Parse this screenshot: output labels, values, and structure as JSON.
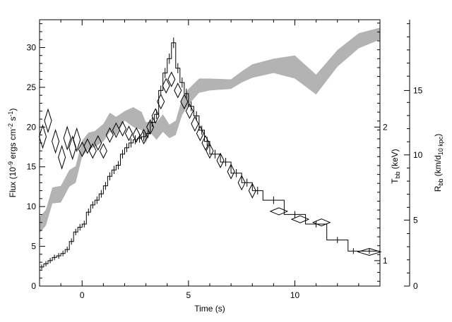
{
  "chart_data": {
    "type": "line",
    "title": "",
    "xlabel": "Time (s)",
    "ylabel_left": "Flux (10^-9 ergs cm^-2 s^-1)",
    "ylabel_right_inner": "T_bb (keV)",
    "ylabel_right_outer": "R_bb (km/d_10 kpc)",
    "xlim": [
      -2,
      14
    ],
    "ylim": [
      0,
      33.5
    ],
    "x_ticks": [
      0,
      5,
      10
    ],
    "x_tick_labels": [
      "0",
      "5",
      "10"
    ],
    "y_ticks": [
      0,
      5,
      10,
      15,
      20,
      25,
      30
    ],
    "y_tick_labels": [
      "0",
      "5",
      "10",
      "15",
      "20",
      "25",
      "30"
    ],
    "t_axis_ticks_flux": [
      3.2,
      20.0
    ],
    "t_axis_tick_labels": [
      "1",
      "2"
    ],
    "r_axis_ticks_flux": [
      0,
      8.3,
      16.5,
      24.6
    ],
    "r_axis_tick_labels": [
      "0",
      "5",
      "10",
      "15"
    ],
    "colors": {
      "band": "#b3b3b3",
      "line": "#000000"
    },
    "grid": false,
    "series": [
      {
        "kind": "step",
        "x": [
          -2.0,
          -1.8,
          -1.6,
          -1.4,
          -1.2,
          -1.0,
          -0.8,
          -0.6,
          -0.4,
          -0.2,
          0.0,
          0.2,
          0.4,
          0.6,
          0.8,
          1.0,
          1.2,
          1.4,
          1.6,
          1.8,
          2.0,
          2.2,
          2.4,
          2.6,
          2.8,
          3.0,
          3.2,
          3.4,
          3.6,
          3.8,
          4.0,
          4.2,
          4.4,
          4.6,
          4.8,
          5.0,
          5.25,
          5.5,
          5.75,
          6.0,
          6.5,
          7.0,
          7.5,
          8.0,
          8.5,
          9.5,
          10.5,
          11.5,
          12.5,
          13.0,
          14.0
        ],
        "values": [
          2.4,
          2.8,
          3.2,
          3.6,
          3.8,
          4.1,
          4.6,
          5.6,
          6.8,
          7.4,
          7.8,
          9.3,
          10.2,
          10.8,
          11.6,
          12.6,
          13.8,
          14.6,
          15.2,
          16.6,
          17.4,
          18.0,
          18.4,
          18.6,
          18.8,
          19.2,
          20.6,
          21.6,
          24.6,
          26.8,
          28.6,
          30.6,
          27.4,
          25.6,
          24.2,
          22.6,
          21.4,
          19.6,
          18.2,
          16.6,
          15.6,
          14.2,
          13.0,
          12.0,
          10.8,
          9.0,
          7.8,
          5.8,
          4.4,
          4.4,
          4.4
        ]
      },
      {
        "kind": "diamonds",
        "x": [
          -1.85,
          -1.6,
          -1.25,
          -0.95,
          -0.7,
          -0.45,
          -0.25,
          0.0,
          0.25,
          0.5,
          0.75,
          1.0,
          1.3,
          1.6,
          1.9,
          2.2,
          2.55,
          2.9,
          3.2,
          3.45,
          3.7,
          3.95,
          4.2,
          4.5,
          4.8,
          5.05,
          5.3,
          5.55,
          5.8,
          6.0,
          6.5,
          7.0,
          7.5,
          8.0,
          9.25,
          10.25,
          11.25,
          13.5
        ],
        "values": [
          18.8,
          20.8,
          18.2,
          16.2,
          18.6,
          17.4,
          18.4,
          17.2,
          17.6,
          17.0,
          18.0,
          17.0,
          19.0,
          19.6,
          19.8,
          19.2,
          19.0,
          18.8,
          20.0,
          21.4,
          23.2,
          25.2,
          26.0,
          24.6,
          23.2,
          22.0,
          20.4,
          19.2,
          18.0,
          17.0,
          15.8,
          14.4,
          13.0,
          12.0,
          9.4,
          8.4,
          8.0,
          4.3
        ]
      },
      {
        "kind": "band",
        "x": [
          -2.0,
          -1.7,
          -1.4,
          -1.0,
          -0.6,
          -0.3,
          0.0,
          0.3,
          0.6,
          1.0,
          1.3,
          1.6,
          2.0,
          2.4,
          2.8,
          3.0,
          3.2,
          3.5,
          3.8,
          4.1,
          4.4,
          4.7,
          5.0,
          5.5,
          6.0,
          7.0,
          7.5,
          8.0,
          9.0,
          10.0,
          11.0,
          12.0,
          13.0,
          14.0
        ],
        "low": [
          6.7,
          7.6,
          10.4,
          10.5,
          12.5,
          13.0,
          16.3,
          17.2,
          17.5,
          18.2,
          19.4,
          19.0,
          20.8,
          20.0,
          19.6,
          18.0,
          19.3,
          18.4,
          19.4,
          18.6,
          19.0,
          21.5,
          22.8,
          24.3,
          24.6,
          24.8,
          25.6,
          26.2,
          26.8,
          26.1,
          24.1,
          27.6,
          29.9,
          31.0
        ],
        "high": [
          8.7,
          9.6,
          12.4,
          12.6,
          14.6,
          15.1,
          18.3,
          19.3,
          19.5,
          20.4,
          21.8,
          21.3,
          22.0,
          22.5,
          21.9,
          20.6,
          20.7,
          20.6,
          21.6,
          20.3,
          20.8,
          23.6,
          24.8,
          26.1,
          26.1,
          26.0,
          27.0,
          27.9,
          28.6,
          29.0,
          26.6,
          29.7,
          31.8,
          32.5
        ]
      }
    ]
  }
}
